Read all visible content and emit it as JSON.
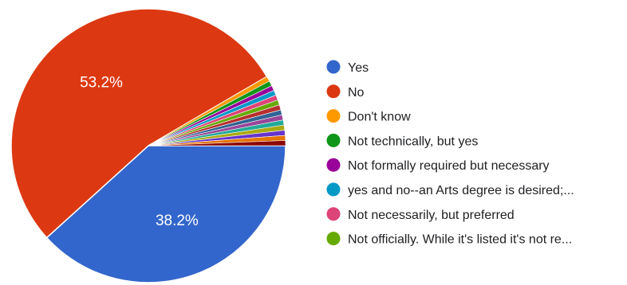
{
  "chart_data": {
    "type": "pie",
    "title": "",
    "legend_position": "right",
    "slices": [
      {
        "label": "Yes",
        "value": 38.2,
        "color": "#3366cc",
        "value_label": "38.2%"
      },
      {
        "label": "No",
        "value": 53.2,
        "color": "#dc3912",
        "value_label": "53.2%"
      },
      {
        "label": "Don't know",
        "value": 0.6,
        "color": "#ff9900"
      },
      {
        "label": "Not technically, but yes",
        "value": 0.6,
        "color": "#109618"
      },
      {
        "label": "Not formally required but necessary",
        "value": 0.6,
        "color": "#990099"
      },
      {
        "label": "yes and no--an Arts degree is desired;...",
        "value": 0.6,
        "color": "#0099c6"
      },
      {
        "label": "Not necessarily, but preferred",
        "value": 0.6,
        "color": "#dd4477"
      },
      {
        "label": "Not officially. While it's listed it's not re...",
        "value": 0.6,
        "color": "#66aa00"
      },
      {
        "label": "",
        "value": 0.6,
        "color": "#b82e2e"
      },
      {
        "label": "",
        "value": 0.6,
        "color": "#316395"
      },
      {
        "label": "",
        "value": 0.6,
        "color": "#994499"
      },
      {
        "label": "",
        "value": 0.6,
        "color": "#22aa99"
      },
      {
        "label": "",
        "value": 0.6,
        "color": "#aaaa11"
      },
      {
        "label": "",
        "value": 0.6,
        "color": "#6633cc"
      },
      {
        "label": "",
        "value": 0.6,
        "color": "#e67300"
      },
      {
        "label": "",
        "value": 0.6,
        "color": "#8b0707"
      }
    ]
  }
}
